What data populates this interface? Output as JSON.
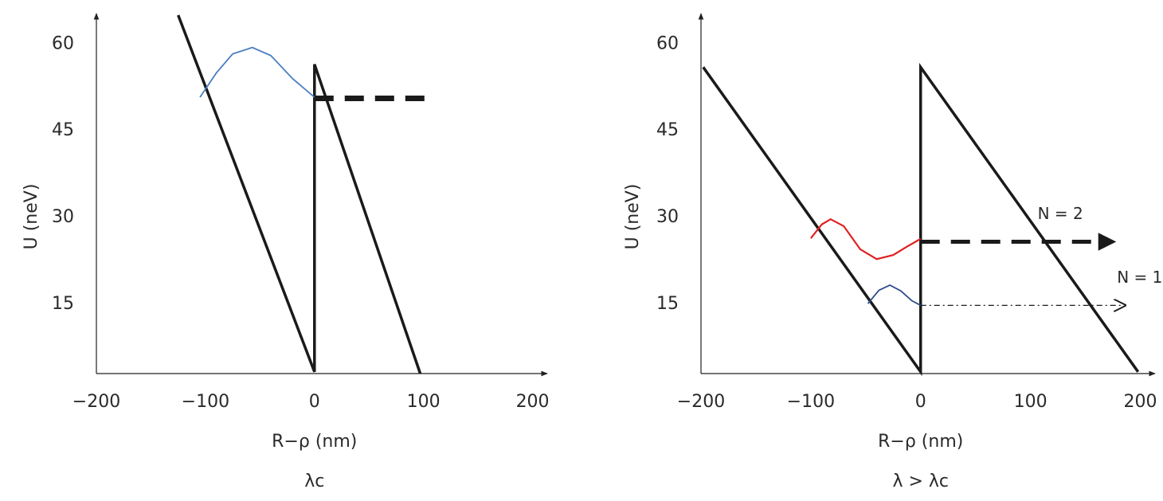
{
  "chart_data": [
    {
      "type": "line",
      "subtitle": "λc",
      "xlabel": "R−ρ (nm)",
      "ylabel": "U (neV)",
      "xlim": [
        -200,
        212
      ],
      "ylim": [
        3,
        65
      ],
      "xticks": [
        {
          "value": -200,
          "label": "−200"
        },
        {
          "value": -100,
          "label": "−100"
        },
        0,
        100,
        200
      ],
      "yticks": [
        15,
        30,
        45,
        60
      ],
      "grid": false,
      "series": [
        {
          "color": "#1a1a1a",
          "style": "solid",
          "linewidth": 3.5,
          "x": [
            -125,
            0,
            0,
            97
          ],
          "values": [
            65,
            3.3,
            56.5,
            3
          ]
        },
        {
          "color": "#4a7fc1",
          "style": "solid",
          "linewidth": 1.8,
          "x": [
            -105,
            -90,
            -75,
            -57,
            -40,
            -20,
            0
          ],
          "values": [
            50.8,
            55,
            58.3,
            59.4,
            58,
            54,
            50.8
          ]
        },
        {
          "color": "#1a1a1a",
          "style": "dashed",
          "linewidth": 7,
          "x": [
            0,
            108
          ],
          "values": [
            50.6,
            50.6
          ]
        }
      ]
    },
    {
      "type": "line",
      "subtitle": "λ > λc",
      "xlabel": "R−ρ (nm)",
      "ylabel": "U (neV)",
      "xlim": [
        -200,
        212
      ],
      "ylim": [
        3,
        65
      ],
      "xticks": [
        {
          "value": -200,
          "label": "−200"
        },
        {
          "value": -100,
          "label": "−100"
        },
        0,
        100,
        200
      ],
      "yticks": [
        15,
        30,
        45,
        60
      ],
      "grid": false,
      "series": [
        {
          "color": "#1a1a1a",
          "style": "solid",
          "linewidth": 3.5,
          "x": [
            -198,
            0,
            0,
            198
          ],
          "values": [
            56,
            3.3,
            56,
            3.3
          ]
        },
        {
          "color": "#e02020",
          "style": "solid",
          "linewidth": 2.2,
          "x": [
            -100,
            -90,
            -82,
            -70,
            -55,
            -40,
            -25,
            -12,
            0
          ],
          "values": [
            26.4,
            28.8,
            29.7,
            28.5,
            24.5,
            22.8,
            23.5,
            25,
            26.3
          ]
        },
        {
          "color": "#2c4a8a",
          "style": "solid",
          "linewidth": 1.8,
          "x": [
            -48,
            -38,
            -28,
            -18,
            -8,
            0
          ],
          "values": [
            15.1,
            17.4,
            18.3,
            17.3,
            15.6,
            14.8
          ]
        },
        {
          "name": "N = 2",
          "color": "#1a1a1a",
          "style": "dashed",
          "linewidth": 5,
          "arrow": "filled",
          "x": [
            0,
            165
          ],
          "values": [
            25.8,
            25.8
          ]
        },
        {
          "name": "N = 1",
          "color": "#1a1a1a",
          "style": "dashdot",
          "linewidth": 1.2,
          "arrow": "open",
          "x": [
            0,
            185
          ],
          "values": [
            14.8,
            14.8
          ]
        }
      ]
    }
  ]
}
